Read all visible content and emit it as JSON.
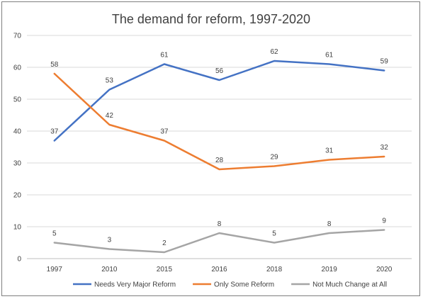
{
  "chart_data": {
    "type": "line",
    "title": "The demand for reform, 1997-2020",
    "categories": [
      "1997",
      "2010",
      "2015",
      "2016",
      "2018",
      "2019",
      "2020"
    ],
    "y_ticks": [
      "0",
      "10",
      "20",
      "30",
      "40",
      "50",
      "60",
      "70"
    ],
    "ylim": [
      0,
      70
    ],
    "grid": true,
    "legend_position": "bottom",
    "series": [
      {
        "name": "Needs Very Major Reform",
        "color": "#4472C4",
        "values": [
          37,
          53,
          61,
          56,
          62,
          61,
          59
        ]
      },
      {
        "name": "Only Some Reform",
        "color": "#ED7D31",
        "values": [
          58,
          42,
          37,
          28,
          29,
          31,
          32
        ]
      },
      {
        "name": "Not Much Change at All",
        "color": "#A5A5A5",
        "values": [
          5,
          3,
          2,
          8,
          5,
          8,
          9
        ]
      }
    ]
  }
}
